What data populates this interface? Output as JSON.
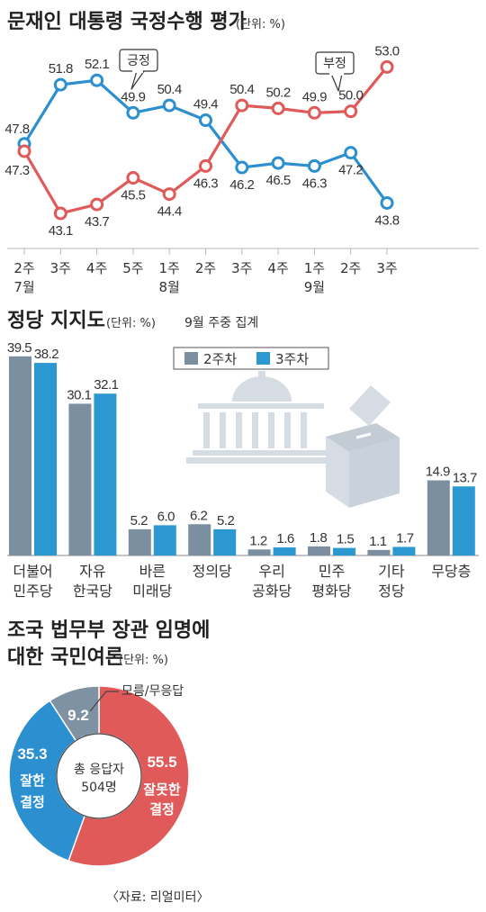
{
  "colors": {
    "approve": "#2b8fd0",
    "disapprove": "#e05a5a",
    "week2": "#7b8fa0",
    "week3": "#2b98d2",
    "donut_other": "#7f92a3",
    "grid": "#b9b9b9",
    "illustration": "#d6dce3"
  },
  "chart_data": [
    {
      "type": "line",
      "title": "문재인 대통령 국정수행 평가",
      "unit": "(단위: %)",
      "x": [
        {
          "week": "2주",
          "month": "7월"
        },
        {
          "week": "3주",
          "month": ""
        },
        {
          "week": "4주",
          "month": ""
        },
        {
          "week": "5주",
          "month": ""
        },
        {
          "week": "1주",
          "month": "8월"
        },
        {
          "week": "2주",
          "month": ""
        },
        {
          "week": "3주",
          "month": ""
        },
        {
          "week": "4주",
          "month": ""
        },
        {
          "week": "1주",
          "month": "9월"
        },
        {
          "week": "2주",
          "month": ""
        },
        {
          "week": "3주",
          "month": ""
        }
      ],
      "series": [
        {
          "name": "긍정",
          "values": [
            47.8,
            51.8,
            52.1,
            49.9,
            50.4,
            49.4,
            46.2,
            46.5,
            46.3,
            47.2,
            43.8
          ]
        },
        {
          "name": "부정",
          "values": [
            47.3,
            43.1,
            43.7,
            45.5,
            44.4,
            46.3,
            50.4,
            50.2,
            49.9,
            50.0,
            53.0
          ]
        }
      ],
      "ylim": [
        42,
        54
      ],
      "grid": false
    },
    {
      "type": "bar",
      "title": "정당 지지도",
      "unit": "(단위: %)",
      "subtitle": "9월 주중 집계",
      "categories": [
        [
          "더불어",
          "민주당"
        ],
        [
          "자유",
          "한국당"
        ],
        [
          "바른",
          "미래당"
        ],
        [
          "정의당"
        ],
        [
          "우리",
          "공화당"
        ],
        [
          "민주",
          "평화당"
        ],
        [
          "기타",
          "정당"
        ],
        [
          "무당층"
        ]
      ],
      "series": [
        {
          "name": "2주차",
          "values": [
            39.5,
            30.1,
            5.2,
            6.2,
            1.2,
            1.8,
            1.1,
            14.9
          ]
        },
        {
          "name": "3주차",
          "values": [
            38.2,
            32.1,
            6.0,
            5.2,
            1.6,
            1.5,
            1.7,
            13.7
          ]
        }
      ],
      "legend": "top-center"
    },
    {
      "type": "pie",
      "title": [
        "조국 법무부 장관 임명에",
        "대한 국민여론"
      ],
      "unit": "(단위: %)",
      "slices": [
        {
          "label": [
            "잘못한",
            "결정"
          ],
          "value": 55.5
        },
        {
          "label": [
            "잘한",
            "결정"
          ],
          "value": 35.3
        },
        {
          "label": [
            "모름/무응답"
          ],
          "value": 9.2
        }
      ],
      "center": [
        "총 응답자",
        "504명"
      ]
    }
  ],
  "source": "〈자료: 리얼미터〉"
}
